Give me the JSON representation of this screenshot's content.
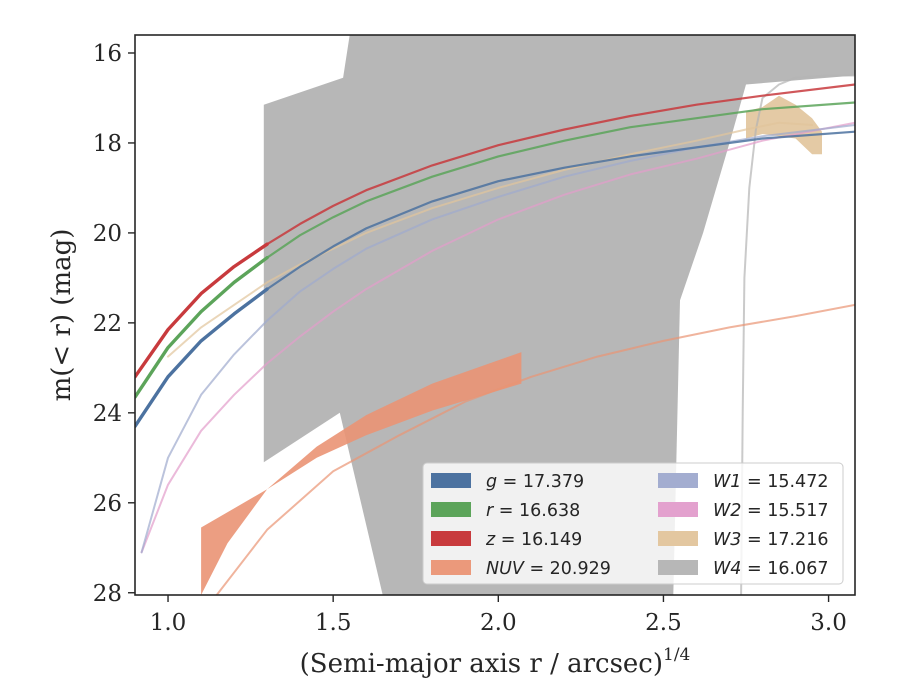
{
  "chart_data": {
    "type": "line",
    "xlabel": "(Semi-major axis r / arcsec)",
    "xlabel_exponent": "1/4",
    "ylabel": "m(< r) (mag)",
    "xlim": [
      0.9,
      3.08
    ],
    "ylim": [
      28.05,
      15.6
    ],
    "y_inverted": true,
    "x_ticks": [
      1.0,
      1.5,
      2.0,
      2.5,
      3.0
    ],
    "x_tick_labels": [
      "1.0",
      "1.5",
      "2.0",
      "2.5",
      "3.0"
    ],
    "y_ticks": [
      16,
      18,
      20,
      22,
      24,
      26,
      28
    ],
    "y_tick_labels": [
      "16",
      "18",
      "20",
      "22",
      "24",
      "26",
      "28"
    ],
    "grid": false,
    "legend_position": "lower-right",
    "legend": [
      {
        "key": "g",
        "text": "g = 17.379",
        "color": "#4c72a0"
      },
      {
        "key": "r",
        "text": "r = 16.638",
        "color": "#5ca45a"
      },
      {
        "key": "z",
        "text": "z = 16.149",
        "color": "#c83a3d"
      },
      {
        "key": "NUV",
        "text": "NUV = 20.929",
        "color": "#ea9474"
      },
      {
        "key": "W1",
        "text": "W1 = 15.472",
        "color": "#9ea9cd"
      },
      {
        "key": "W2",
        "text": "W2 = 15.517",
        "color": "#e29ccb"
      },
      {
        "key": "W3",
        "text": "W3 = 17.216",
        "color": "#e1c49b"
      },
      {
        "key": "W4",
        "text": "W4 = 16.067",
        "color": "#b3b3b3"
      }
    ],
    "series": [
      {
        "name": "g",
        "color": "#4c72a0",
        "x": [
          0.9,
          1.0,
          1.1,
          1.2,
          1.3,
          1.4,
          1.5,
          1.6,
          1.8,
          2.0,
          2.2,
          2.4,
          2.6,
          2.8,
          3.08
        ],
        "y": [
          24.3,
          23.2,
          22.4,
          21.8,
          21.25,
          20.75,
          20.3,
          19.9,
          19.3,
          18.85,
          18.55,
          18.3,
          18.1,
          17.9,
          17.75
        ]
      },
      {
        "name": "r",
        "color": "#5ca45a",
        "x": [
          0.9,
          1.0,
          1.1,
          1.2,
          1.3,
          1.4,
          1.5,
          1.6,
          1.8,
          2.0,
          2.2,
          2.4,
          2.6,
          2.8,
          3.08
        ],
        "y": [
          23.65,
          22.55,
          21.75,
          21.1,
          20.55,
          20.05,
          19.65,
          19.3,
          18.75,
          18.3,
          17.95,
          17.65,
          17.45,
          17.25,
          17.1
        ]
      },
      {
        "name": "z",
        "color": "#c83a3d",
        "x": [
          0.9,
          1.0,
          1.1,
          1.2,
          1.3,
          1.4,
          1.5,
          1.6,
          1.8,
          2.0,
          2.2,
          2.4,
          2.6,
          2.8,
          3.08
        ],
        "y": [
          23.2,
          22.15,
          21.35,
          20.75,
          20.25,
          19.8,
          19.4,
          19.05,
          18.5,
          18.05,
          17.7,
          17.4,
          17.15,
          16.95,
          16.7
        ]
      },
      {
        "name": "NUV",
        "color": "#ea9474",
        "x": [
          1.1,
          1.3,
          1.5,
          1.7,
          1.9,
          2.1,
          2.3,
          2.5,
          2.7,
          2.9,
          3.08
        ],
        "y": [
          28.5,
          26.6,
          25.3,
          24.5,
          23.75,
          23.2,
          22.75,
          22.4,
          22.1,
          21.85,
          21.6
        ]
      },
      {
        "name": "W1",
        "color": "#9ea9cd",
        "x": [
          0.92,
          1.0,
          1.1,
          1.2,
          1.3,
          1.4,
          1.5,
          1.6,
          1.8,
          2.0,
          2.2,
          2.4,
          2.6,
          2.8,
          3.08
        ],
        "y": [
          27.1,
          25.0,
          23.6,
          22.7,
          21.95,
          21.3,
          20.8,
          20.35,
          19.7,
          19.2,
          18.75,
          18.4,
          18.1,
          17.85,
          17.6
        ]
      },
      {
        "name": "W2",
        "color": "#e29ccb",
        "x": [
          0.92,
          1.0,
          1.1,
          1.2,
          1.3,
          1.4,
          1.5,
          1.6,
          1.8,
          2.0,
          2.2,
          2.4,
          2.6,
          2.8,
          3.08
        ],
        "y": [
          27.1,
          25.6,
          24.4,
          23.6,
          22.9,
          22.3,
          21.75,
          21.25,
          20.4,
          19.7,
          19.15,
          18.7,
          18.35,
          17.95,
          17.55
        ]
      },
      {
        "name": "W3",
        "color": "#e1c49b",
        "x": [
          1.0,
          1.1,
          1.2,
          1.3,
          1.4,
          1.5,
          1.6,
          1.8,
          2.0,
          2.2,
          2.4,
          2.6,
          2.75,
          2.85,
          2.95
        ],
        "y": [
          22.75,
          22.1,
          21.6,
          21.1,
          20.7,
          20.35,
          20.0,
          19.45,
          19.0,
          18.6,
          18.25,
          17.95,
          17.7,
          17.55,
          17.6
        ]
      },
      {
        "name": "W4",
        "color": "#b3b3b3",
        "x": [
          2.735,
          2.74,
          2.745,
          2.76,
          2.78,
          2.8,
          2.85,
          2.9,
          3.0,
          3.08
        ],
        "y": [
          28.05,
          24.0,
          21.0,
          19.0,
          17.7,
          17.0,
          16.7,
          16.55,
          16.5,
          16.5
        ]
      }
    ],
    "bands": [
      {
        "name": "W4",
        "color": "#b3b3b3",
        "x": [
          1.29,
          1.29,
          1.53,
          1.55,
          3.08,
          3.08,
          2.75,
          2.7,
          2.62,
          2.55,
          2.53,
          1.65,
          1.52,
          1.29
        ],
        "y": [
          25.1,
          17.15,
          16.55,
          15.6,
          15.6,
          16.5,
          16.7,
          18.0,
          20.0,
          21.5,
          28.05,
          28.05,
          24.0,
          25.1
        ]
      },
      {
        "name": "NUV",
        "color": "#ea9474",
        "x": [
          1.1,
          1.3,
          1.45,
          1.6,
          1.8,
          2.07,
          2.07,
          1.8,
          1.6,
          1.45,
          1.3,
          1.18,
          1.1
        ],
        "y": [
          26.55,
          25.7,
          25.0,
          24.5,
          23.95,
          23.35,
          22.65,
          23.35,
          24.05,
          24.75,
          25.7,
          26.9,
          28.05
        ]
      },
      {
        "name": "W3",
        "color": "#e1c49b",
        "x": [
          2.75,
          2.8,
          2.85,
          2.9,
          2.95,
          2.98,
          2.98,
          2.95,
          2.9,
          2.85,
          2.8,
          2.75
        ],
        "y": [
          17.3,
          17.2,
          16.95,
          17.15,
          17.45,
          17.75,
          18.25,
          18.25,
          17.9,
          17.85,
          17.8,
          17.9
        ]
      }
    ]
  }
}
